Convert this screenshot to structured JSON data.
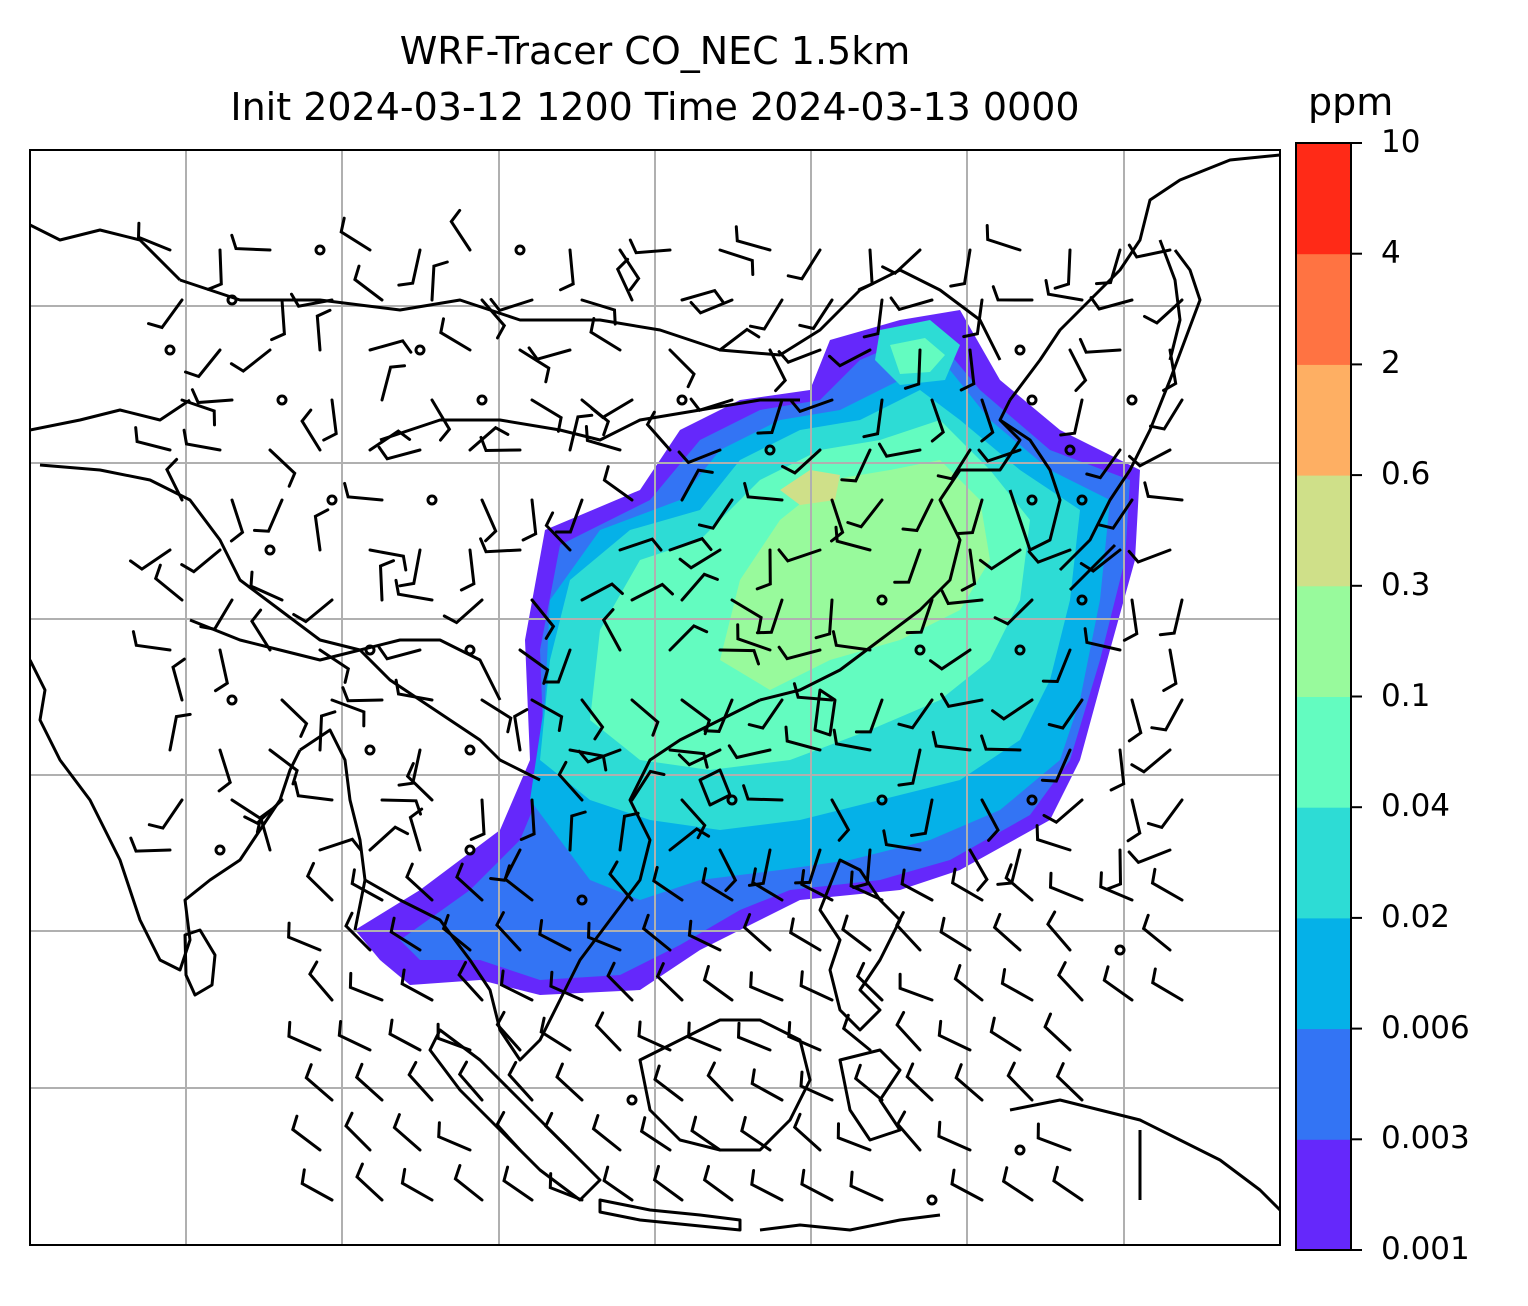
{
  "title": {
    "line1": "WRF-Tracer CO_NEC 1.5km",
    "line2": "Init 2024-03-12 1200 Time 2024-03-13 0000"
  },
  "colorbar": {
    "unit": "ppm",
    "levels": [
      "0.001",
      "0.003",
      "0.006",
      "0.02",
      "0.04",
      "0.1",
      "0.3",
      "0.6",
      "2",
      "4",
      "10"
    ],
    "colors": [
      "#6528fb",
      "#3374f4",
      "#05b1e8",
      "#2ddcd5",
      "#63fcc0",
      "#98fa9c",
      "#cfe089",
      "#feaf63",
      "#ff7342",
      "#ff2a17"
    ]
  },
  "map": {
    "coastline_color": "#000000",
    "grid_color": "#b0b0b0",
    "wind_barb_color": "#000000"
  }
}
